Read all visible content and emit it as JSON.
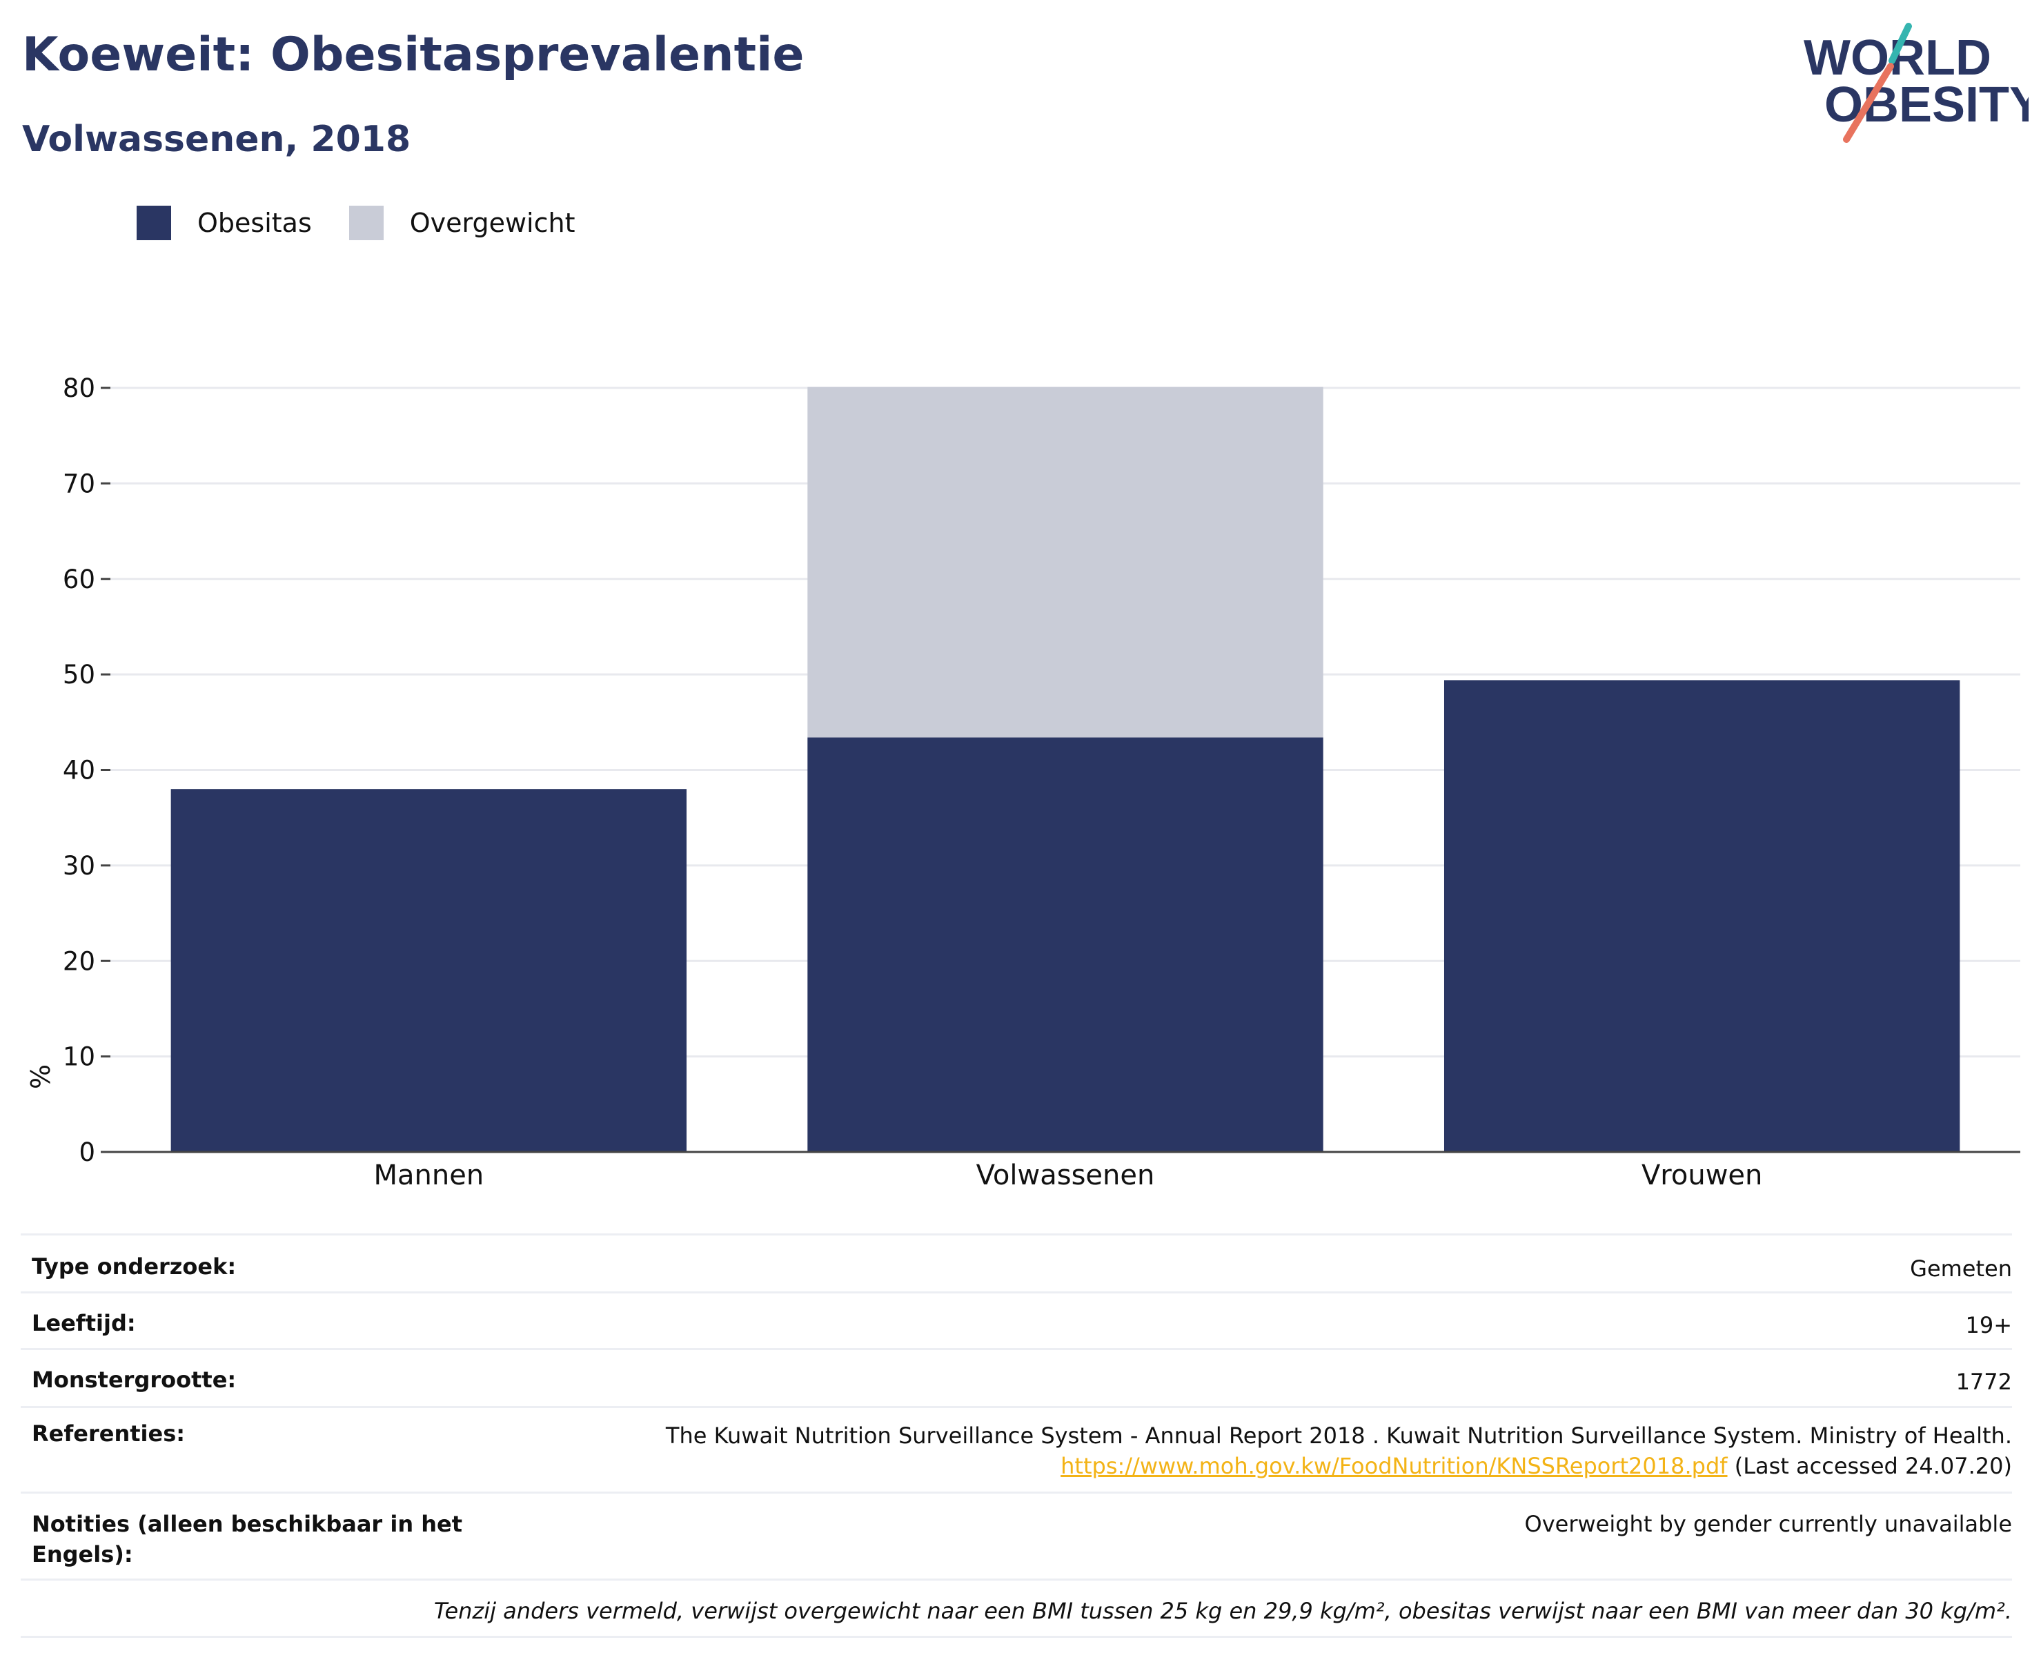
{
  "header": {
    "title": "Koeweit: Obesitasprevalentie",
    "subtitle": "Volwassenen, 2018"
  },
  "logo": {
    "line1": "WORLD",
    "line2": "OBESITY",
    "accent_teal": "#35b5b0",
    "accent_coral": "#e8735e"
  },
  "legend": {
    "items": [
      {
        "label": "Obesitas",
        "color": "#2a3663"
      },
      {
        "label": "Overgewicht",
        "color": "#c9ccd7"
      }
    ]
  },
  "chart_data": {
    "type": "bar",
    "stacked": true,
    "categories": [
      "Mannen",
      "Volwassenen",
      "Vrouwen"
    ],
    "series": [
      {
        "name": "Obesitas",
        "color": "#2a3663",
        "values": [
          38.0,
          43.4,
          49.4
        ]
      },
      {
        "name": "Overgewicht",
        "color": "#c9ccd7",
        "values": [
          null,
          36.7,
          null
        ]
      }
    ],
    "ylabel": "%",
    "xlabel": "",
    "ylim": [
      0,
      80
    ],
    "yticks": [
      0,
      10,
      20,
      30,
      40,
      50,
      60,
      70,
      80
    ],
    "grid": true
  },
  "info": {
    "survey_type": {
      "label": "Type onderzoek:",
      "value": "Gemeten"
    },
    "age": {
      "label": "Leeftijd:",
      "value": "19+"
    },
    "sample_size": {
      "label": "Monstergrootte:",
      "value": "1772"
    },
    "references": {
      "label": "Referenties:",
      "text": "The Kuwait Nutrition Surveillance System - Annual Report 2018 . Kuwait Nutrition Surveillance System. Ministry of Health.",
      "link": "https://www.moh.gov.kw/FoodNutrition/KNSSReport2018.pdf",
      "accessed": " (Last accessed 24.07.20)"
    },
    "notes": {
      "label": "Notities (alleen beschikbaar in het Engels):",
      "value": "Overweight by gender currently unavailable"
    },
    "footnote": "Tenzij anders vermeld, verwijst overgewicht naar een BMI tussen 25 kg en 29,9 kg/m², obesitas verwijst naar een BMI van meer dan 30 kg/m²."
  }
}
